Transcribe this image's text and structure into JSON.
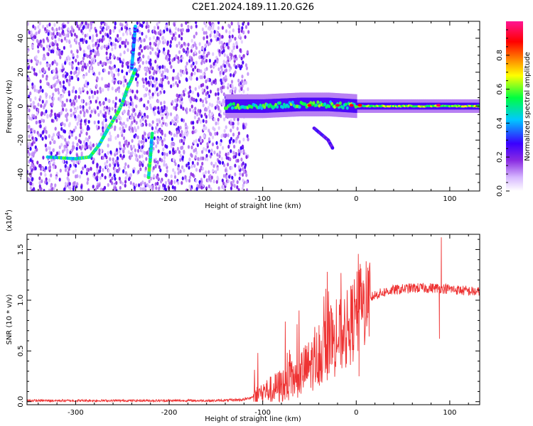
{
  "figure_title": "C2E1.2024.189.11.20.G26",
  "chart_data": [
    {
      "type": "heatmap",
      "xlabel": "Height of straight line (km)",
      "ylabel": "Frequency (Hz)",
      "xlim": [
        -352,
        132
      ],
      "ylim": [
        -50,
        50
      ],
      "xticks": [
        -300,
        -200,
        -100,
        0,
        100
      ],
      "yticks": [
        -40,
        -20,
        0,
        20,
        40
      ],
      "colorbar": {
        "label": "Normalized spectral amplitude",
        "range": [
          0.0,
          1.0
        ],
        "ticks": [
          0.0,
          0.2,
          0.4,
          0.6,
          0.8
        ],
        "colormap": [
          "#ffffff",
          "#d7b8ff",
          "#8a2be2",
          "#3a00ff",
          "#00c8ff",
          "#00ff40",
          "#ffff00",
          "#ff8000",
          "#ff0000",
          "#ff1493"
        ]
      },
      "features": [
        {
          "name": "diffuse scatter",
          "x_range": [
            -352,
            -115
          ],
          "y_range": [
            -50,
            50
          ],
          "amplitude": 0.15
        },
        {
          "name": "tone",
          "x": [
            -330,
            -300,
            -285,
            -275,
            -265,
            -255,
            -250,
            -245,
            -240,
            -236
          ],
          "y": [
            -30,
            -31,
            -30,
            -23,
            -13,
            -4,
            2,
            10,
            16,
            22
          ],
          "amplitude": 0.5
        },
        {
          "name": "tone",
          "x": [
            -240,
            -238,
            -236
          ],
          "y": [
            22,
            35,
            48
          ],
          "amplitude": 0.35
        },
        {
          "name": "tone",
          "x": [
            -222,
            -220,
            -218
          ],
          "y": [
            -42,
            -30,
            -15
          ],
          "amplitude": 0.5
        },
        {
          "name": "carrier",
          "x": [
            -140,
            -100,
            -60,
            -30,
            0,
            50,
            90,
            132
          ],
          "y": [
            0,
            0,
            1,
            1,
            0,
            0,
            0,
            0
          ],
          "amplitude": 0.5
        },
        {
          "name": "spur",
          "x": [
            -45,
            -30,
            -25
          ],
          "y": [
            -13,
            -20,
            -25
          ],
          "amplitude": 0.25
        }
      ]
    },
    {
      "type": "line",
      "xlabel": "Height of straight line (km)",
      "ylabel": "SNR (10 * v/v)",
      "y_multiplier": "(x10",
      "y_multiplier_exp": "4",
      "y_multiplier_close": ")",
      "xlim": [
        -352,
        132
      ],
      "ylim": [
        -0.03,
        1.65
      ],
      "xticks": [
        -300,
        -200,
        -100,
        0,
        100
      ],
      "yticks": [
        0.0,
        0.5,
        1.0,
        1.5
      ],
      "grid": false,
      "series": [
        {
          "color": "#ee3333",
          "x": [
            -352,
            -300,
            -250,
            -200,
            -150,
            -120,
            -110,
            -100,
            -90,
            -80,
            -70,
            -60,
            -50,
            -40,
            -30,
            -20,
            -10,
            0,
            10,
            15,
            20,
            30,
            40,
            50,
            60,
            70,
            80,
            90,
            100,
            110,
            120,
            132
          ],
          "y": [
            0.01,
            0.01,
            0.01,
            0.01,
            0.01,
            0.02,
            0.05,
            0.1,
            0.12,
            0.16,
            0.2,
            0.28,
            0.35,
            0.45,
            0.55,
            0.62,
            0.7,
            0.85,
            0.95,
            1.02,
            1.05,
            1.08,
            1.1,
            1.11,
            1.12,
            1.12,
            1.12,
            1.12,
            1.11,
            1.1,
            1.09,
            1.08
          ],
          "spikes": [
            {
              "x": -31,
              "y": 1.28
            },
            {
              "x": 91,
              "y": 1.62
            },
            {
              "x": 89,
              "y": 0.62
            },
            {
              "x": 3,
              "y": 0.25
            }
          ]
        }
      ]
    }
  ]
}
